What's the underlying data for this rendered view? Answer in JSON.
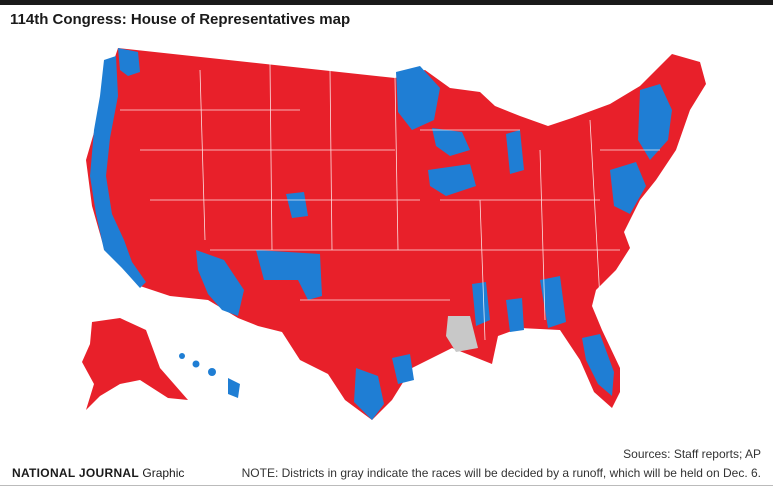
{
  "header": {
    "title": "114th Congress: House of Representatives map"
  },
  "map": {
    "colors": {
      "republican": "#e8202a",
      "democrat": "#1f7ed4",
      "runoff": "#c8c8c8",
      "boundary": "#ffffff"
    }
  },
  "footer": {
    "sources": "Sources: Staff reports; AP",
    "brand_name": "NATIONAL JOURNAL",
    "brand_suffix": "Graphic",
    "note": "NOTE: Districts in gray indicate the races will be decided by a runoff, which will be held on Dec. 6."
  }
}
